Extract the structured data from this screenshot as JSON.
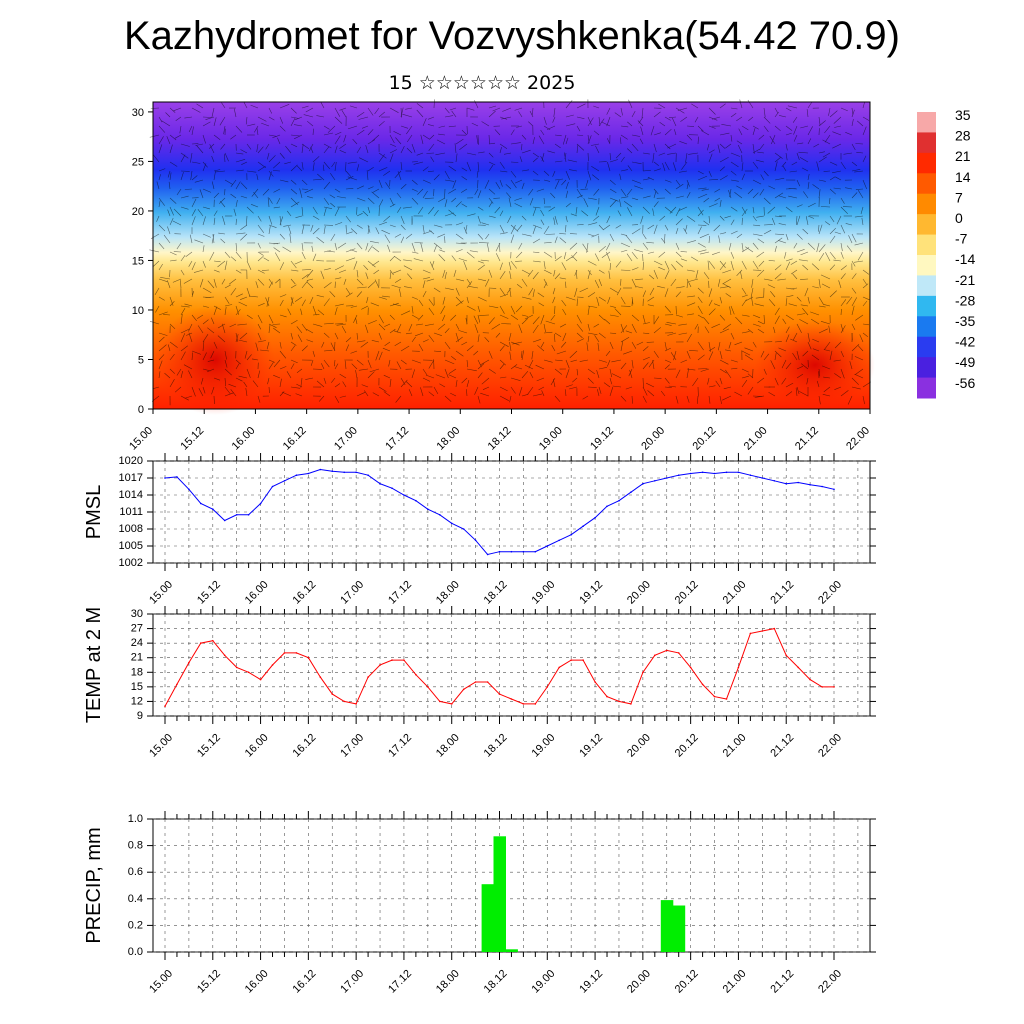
{
  "title": "Kazhydromet for Vozvyshkenka(54.42 70.9)",
  "subtitle": "15 ☆☆☆☆☆☆ 2025",
  "time_ticks": [
    "15.00",
    "15.12",
    "16.00",
    "16.12",
    "17.00",
    "17.12",
    "18.00",
    "18.12",
    "19.00",
    "19.12",
    "20.00",
    "20.12",
    "21.00",
    "21.12",
    "22.00"
  ],
  "chart_data": [
    {
      "type": "heatmap",
      "title": "",
      "ylabel": "",
      "x": [
        "15.00",
        "15.12",
        "16.00",
        "16.12",
        "17.00",
        "17.12",
        "18.00",
        "18.12",
        "19.00",
        "19.12",
        "20.00",
        "20.12",
        "21.00",
        "21.12",
        "22.00"
      ],
      "y_ticks": [
        "0",
        "5",
        "10",
        "15",
        "20",
        "25",
        "30"
      ],
      "ylim": [
        0,
        31
      ],
      "colorbar_labels": [
        "35",
        "28",
        "21",
        "14",
        "7",
        "0",
        "-7",
        "-14",
        "-21",
        "-28",
        "-35",
        "-42",
        "-49",
        "-56"
      ],
      "colorbar_colors": [
        "#f7a8a8",
        "#e03030",
        "#ff2a00",
        "#ff5a00",
        "#ff8a00",
        "#ffb830",
        "#ffe27a",
        "#fff8c0",
        "#bfe8f8",
        "#30b8f0",
        "#1a7af0",
        "#2a3cf0",
        "#4a20e0",
        "#8a30e0"
      ],
      "overlay": "wind vectors"
    },
    {
      "type": "line",
      "ylabel": "PMSL",
      "y_ticks": [
        "1002",
        "1005",
        "1008",
        "1011",
        "1014",
        "1017",
        "1020"
      ],
      "ylim": [
        1002,
        1020
      ],
      "color": "#0000ff",
      "x": [
        0,
        3,
        6,
        9,
        12,
        15,
        18,
        21,
        24,
        27,
        30,
        33,
        36,
        39,
        42,
        45,
        48,
        51,
        54,
        57,
        60,
        63,
        66,
        69,
        72,
        75,
        78,
        81,
        84,
        87,
        90,
        93,
        96,
        99,
        102,
        105,
        108,
        111,
        114,
        117,
        120,
        123,
        126,
        129,
        132,
        135,
        138,
        141,
        144,
        147,
        150,
        153,
        156,
        159,
        162,
        165,
        168
      ],
      "values": [
        1017,
        1017.2,
        1015,
        1012.5,
        1011.5,
        1009.5,
        1010.5,
        1010.5,
        1012.5,
        1015.5,
        1016.5,
        1017.5,
        1017.8,
        1018.5,
        1018.2,
        1018,
        1018,
        1017.5,
        1016,
        1015.2,
        1014,
        1013,
        1011.5,
        1010.5,
        1009,
        1008,
        1006,
        1003.5,
        1004,
        1004,
        1004,
        1004,
        1005,
        1006,
        1007,
        1008.5,
        1010,
        1012,
        1013,
        1014.5,
        1016,
        1016.5,
        1017,
        1017.5,
        1017.8,
        1018,
        1017.8,
        1018,
        1018,
        1017.5,
        1017,
        1016.5,
        1016,
        1016.2,
        1015.8,
        1015.5,
        1015
      ]
    },
    {
      "type": "line",
      "ylabel": "TEMP at 2 M",
      "y_ticks": [
        "9",
        "12",
        "15",
        "18",
        "21",
        "24",
        "27",
        "30"
      ],
      "ylim": [
        9,
        30
      ],
      "color": "#ff0000",
      "x": [
        0,
        3,
        6,
        9,
        12,
        15,
        18,
        21,
        24,
        27,
        30,
        33,
        36,
        39,
        42,
        45,
        48,
        51,
        54,
        57,
        60,
        63,
        66,
        69,
        72,
        75,
        78,
        81,
        84,
        87,
        90,
        93,
        96,
        99,
        102,
        105,
        108,
        111,
        114,
        117,
        120,
        123,
        126,
        129,
        132,
        135,
        138,
        141,
        144,
        147,
        150,
        153,
        156,
        159,
        162,
        165,
        168
      ],
      "values": [
        11,
        15.5,
        20,
        24,
        24.5,
        21.5,
        19,
        18,
        16.5,
        19.5,
        22,
        22,
        21,
        17,
        13.5,
        12,
        11.5,
        17,
        19.5,
        20.5,
        20.5,
        17.5,
        15,
        12,
        11.5,
        14.5,
        16,
        16,
        13.5,
        12.5,
        11.5,
        11.5,
        15,
        19,
        20.5,
        20.5,
        16,
        13,
        12,
        11.5,
        18,
        21.5,
        22.5,
        22,
        19,
        15.5,
        13,
        12.5,
        19,
        26,
        26.5,
        27,
        21.5,
        19,
        16.5,
        15,
        15
      ]
    },
    {
      "type": "bar",
      "ylabel": "PRECIP, mm",
      "y_ticks": [
        "0.0",
        "0.2",
        "0.4",
        "0.6",
        "0.8",
        "1.0"
      ],
      "ylim": [
        0,
        1.0
      ],
      "color": "#00ee00",
      "x_hours": [
        81,
        84,
        87,
        126,
        129
      ],
      "values": [
        0.51,
        0.87,
        0.02,
        0.39,
        0.35
      ]
    }
  ]
}
